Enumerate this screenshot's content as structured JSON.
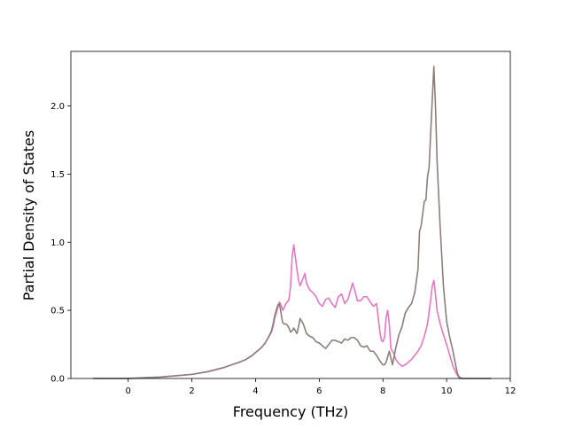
{
  "chart_data": {
    "type": "line",
    "title": "",
    "xlabel": "Frequency (THz)",
    "ylabel": "Partial Density of States",
    "xlim": [
      -1.8,
      12.0
    ],
    "ylim": [
      0.0,
      2.4
    ],
    "xticks": [
      0,
      2,
      4,
      6,
      8,
      10,
      12
    ],
    "xtick_labels": [
      "0",
      "2",
      "4",
      "6",
      "8",
      "10",
      "12"
    ],
    "yticks": [
      0.0,
      0.5,
      1.0,
      1.5,
      2.0
    ],
    "ytick_labels": [
      "0.0",
      "0.5",
      "1.0",
      "1.5",
      "2.0"
    ],
    "grid": false,
    "legend": "none",
    "series": [
      {
        "color": "#e377c2",
        "x": [
          -1.1,
          0.0,
          0.5,
          1.0,
          1.5,
          2.0,
          2.5,
          3.0,
          3.5,
          3.7,
          3.9,
          4.0,
          4.1,
          4.2,
          4.3,
          4.4,
          4.5,
          4.55,
          4.6,
          4.7,
          4.75,
          4.8,
          4.85,
          4.9,
          4.95,
          5.0,
          5.05,
          5.1,
          5.15,
          5.2,
          5.3,
          5.35,
          5.4,
          5.5,
          5.55,
          5.6,
          5.7,
          5.8,
          5.9,
          6.0,
          6.1,
          6.2,
          6.3,
          6.4,
          6.5,
          6.6,
          6.7,
          6.8,
          6.9,
          7.0,
          7.05,
          7.1,
          7.2,
          7.3,
          7.4,
          7.5,
          7.6,
          7.7,
          7.8,
          7.9,
          7.95,
          8.0,
          8.05,
          8.1,
          8.15,
          8.2,
          8.25,
          8.3,
          8.35,
          8.4,
          8.5,
          8.6,
          8.7,
          8.8,
          8.9,
          9.0,
          9.1,
          9.2,
          9.3,
          9.4,
          9.5,
          9.55,
          9.6,
          9.65,
          9.7,
          9.8,
          9.9,
          10.0,
          10.1,
          10.2,
          10.3,
          10.35,
          10.4,
          10.5,
          10.7,
          11.4
        ],
        "y": [
          0.0,
          0.0,
          0.005,
          0.01,
          0.02,
          0.03,
          0.05,
          0.08,
          0.12,
          0.14,
          0.17,
          0.19,
          0.21,
          0.23,
          0.26,
          0.3,
          0.34,
          0.38,
          0.44,
          0.52,
          0.56,
          0.54,
          0.5,
          0.52,
          0.55,
          0.56,
          0.58,
          0.68,
          0.9,
          0.98,
          0.8,
          0.72,
          0.68,
          0.74,
          0.77,
          0.7,
          0.65,
          0.63,
          0.6,
          0.55,
          0.53,
          0.58,
          0.59,
          0.55,
          0.52,
          0.6,
          0.62,
          0.55,
          0.58,
          0.66,
          0.7,
          0.66,
          0.57,
          0.57,
          0.6,
          0.6,
          0.56,
          0.53,
          0.55,
          0.35,
          0.28,
          0.27,
          0.3,
          0.45,
          0.5,
          0.4,
          0.22,
          0.2,
          0.18,
          0.14,
          0.11,
          0.09,
          0.1,
          0.12,
          0.14,
          0.17,
          0.2,
          0.24,
          0.31,
          0.4,
          0.58,
          0.68,
          0.72,
          0.62,
          0.5,
          0.4,
          0.32,
          0.25,
          0.17,
          0.09,
          0.04,
          0.02,
          0.0,
          0.0,
          0.0,
          0.0
        ]
      },
      {
        "color": "#8c7f7a",
        "x": [
          -1.1,
          0.0,
          0.5,
          1.0,
          1.5,
          2.0,
          2.5,
          3.0,
          3.5,
          3.7,
          3.9,
          4.0,
          4.1,
          4.2,
          4.3,
          4.4,
          4.5,
          4.55,
          4.6,
          4.7,
          4.75,
          4.8,
          4.85,
          4.9,
          4.95,
          5.0,
          5.05,
          5.1,
          5.15,
          5.2,
          5.3,
          5.35,
          5.4,
          5.5,
          5.6,
          5.7,
          5.8,
          5.9,
          6.0,
          6.1,
          6.2,
          6.3,
          6.4,
          6.5,
          6.6,
          6.7,
          6.8,
          6.9,
          7.0,
          7.1,
          7.2,
          7.3,
          7.4,
          7.5,
          7.6,
          7.7,
          7.8,
          7.9,
          8.0,
          8.05,
          8.1,
          8.2,
          8.3,
          8.35,
          8.4,
          8.5,
          8.6,
          8.7,
          8.8,
          8.9,
          9.0,
          9.1,
          9.15,
          9.2,
          9.3,
          9.35,
          9.4,
          9.45,
          9.5,
          9.55,
          9.6,
          9.65,
          9.7,
          9.8,
          9.9,
          10.0,
          10.1,
          10.2,
          10.3,
          10.35,
          10.4,
          10.5,
          10.7,
          11.4
        ],
        "y": [
          0.0,
          0.0,
          0.005,
          0.01,
          0.02,
          0.03,
          0.05,
          0.08,
          0.12,
          0.14,
          0.17,
          0.19,
          0.21,
          0.23,
          0.26,
          0.3,
          0.35,
          0.4,
          0.46,
          0.54,
          0.55,
          0.48,
          0.41,
          0.4,
          0.4,
          0.39,
          0.37,
          0.34,
          0.35,
          0.37,
          0.33,
          0.38,
          0.44,
          0.4,
          0.33,
          0.31,
          0.3,
          0.27,
          0.26,
          0.24,
          0.22,
          0.25,
          0.28,
          0.28,
          0.27,
          0.26,
          0.29,
          0.28,
          0.3,
          0.3,
          0.28,
          0.24,
          0.23,
          0.24,
          0.2,
          0.2,
          0.17,
          0.13,
          0.1,
          0.1,
          0.12,
          0.2,
          0.1,
          0.16,
          0.22,
          0.32,
          0.38,
          0.48,
          0.52,
          0.55,
          0.63,
          0.8,
          1.08,
          1.12,
          1.3,
          1.31,
          1.48,
          1.55,
          1.8,
          2.05,
          2.29,
          2.0,
          1.6,
          1.1,
          0.68,
          0.42,
          0.3,
          0.2,
          0.08,
          0.03,
          0.01,
          0.0,
          0.0,
          0.0
        ]
      }
    ]
  }
}
